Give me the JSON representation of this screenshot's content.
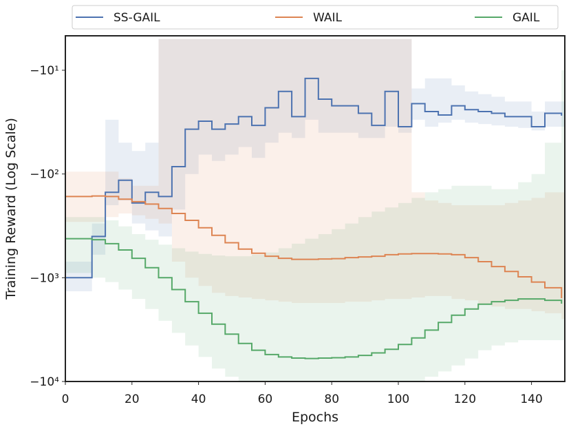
{
  "chart_data": {
    "type": "line",
    "title": "",
    "xlabel": "Epochs",
    "ylabel": "Training Reward (Log Scale)",
    "x_scale": "linear",
    "y_scale": "symlog-negative",
    "xlim": [
      0,
      150
    ],
    "ylim": [
      -10000,
      -5
    ],
    "x_ticks": [
      0,
      20,
      40,
      60,
      80,
      100,
      120,
      140
    ],
    "y_ticks": [
      {
        "value": -10,
        "label": "−10¹"
      },
      {
        "value": -100,
        "label": "−10²"
      },
      {
        "value": -1000,
        "label": "−10³"
      },
      {
        "value": -10000,
        "label": "−10⁴"
      }
    ],
    "grid": false,
    "legend_position": "top",
    "series": [
      {
        "name": "SS-GAIL",
        "color": "#4c72b0",
        "x": [
          0,
          8,
          12,
          16,
          20,
          24,
          28,
          32,
          36,
          40,
          44,
          48,
          52,
          56,
          60,
          64,
          68,
          72,
          76,
          80,
          84,
          88,
          92,
          96,
          100,
          104,
          108,
          112,
          116,
          120,
          124,
          128,
          132,
          136,
          140,
          144,
          149
        ],
        "values": [
          -1000,
          -400,
          -150,
          -115,
          -190,
          -150,
          -165,
          -85,
          -37,
          -31,
          -37,
          -33,
          -28,
          -34,
          -23,
          -16,
          -28,
          -12,
          -19,
          -22,
          -22,
          -26,
          -34,
          -16,
          -35,
          -21,
          -25,
          -27,
          -22,
          -24,
          -25,
          -26,
          -28,
          -28,
          -35,
          -26,
          -27
        ],
        "band_low": [
          -1350,
          -600,
          -200,
          -180,
          -300,
          -350,
          -400,
          -220,
          -100,
          -65,
          -75,
          -65,
          -55,
          -70,
          -50,
          -40,
          -45,
          -30,
          -40,
          -40,
          -40,
          -45,
          -45,
          -35,
          -40,
          -30,
          -35,
          -32,
          -30,
          -32,
          -33,
          -34,
          -35,
          -36,
          -38,
          -35,
          -35
        ],
        "band_high": [
          -700,
          -300,
          -30,
          -50,
          -60,
          -50,
          -5,
          -5,
          -5,
          -5,
          -5,
          -5,
          -5,
          -5,
          -5,
          -5,
          -5,
          -5,
          -5,
          -5,
          -5,
          -5,
          -5,
          -5,
          -5,
          -15,
          -12,
          -12,
          -14,
          -16,
          -17,
          -18,
          -20,
          -20,
          -25,
          -20,
          -20
        ]
      },
      {
        "name": "WAIL",
        "color": "#dd8452",
        "x": [
          0,
          8,
          12,
          16,
          20,
          24,
          28,
          32,
          36,
          40,
          44,
          48,
          52,
          56,
          60,
          64,
          68,
          72,
          76,
          80,
          84,
          88,
          92,
          96,
          100,
          104,
          108,
          112,
          116,
          120,
          124,
          128,
          132,
          136,
          140,
          144,
          149
        ],
        "values": [
          -165,
          -163,
          -165,
          -175,
          -185,
          -195,
          -215,
          -240,
          -280,
          -330,
          -390,
          -460,
          -530,
          -580,
          -620,
          -650,
          -665,
          -665,
          -660,
          -655,
          -640,
          -630,
          -620,
          -600,
          -590,
          -585,
          -585,
          -590,
          -600,
          -640,
          -700,
          -780,
          -870,
          -980,
          -1100,
          -1250,
          -1550
        ],
        "band_low": [
          -290,
          -290,
          -260,
          -240,
          -250,
          -270,
          -300,
          -700,
          -1000,
          -1200,
          -1400,
          -1500,
          -1550,
          -1600,
          -1650,
          -1700,
          -1750,
          -1750,
          -1750,
          -1750,
          -1700,
          -1700,
          -1650,
          -1600,
          -1600,
          -1550,
          -1500,
          -1500,
          -1600,
          -1650,
          -1800,
          -1900,
          -2000,
          -2000,
          -2100,
          -2200,
          -2500
        ],
        "band_high": [
          -95,
          -95,
          -95,
          -110,
          -130,
          -130,
          -5,
          -5,
          -5,
          -5,
          -5,
          -5,
          -5,
          -5,
          -5,
          -5,
          -5,
          -5,
          -5,
          -5,
          -5,
          -5,
          -5,
          -5,
          -5,
          -150,
          -180,
          -190,
          -200,
          -200,
          -200,
          -200,
          -190,
          -180,
          -170,
          -150,
          -150
        ]
      },
      {
        "name": "GAIL",
        "color": "#55a868",
        "x": [
          0,
          8,
          12,
          16,
          20,
          24,
          28,
          32,
          36,
          40,
          44,
          48,
          52,
          56,
          60,
          64,
          68,
          72,
          76,
          80,
          84,
          88,
          92,
          96,
          100,
          104,
          108,
          112,
          116,
          120,
          124,
          128,
          132,
          136,
          140,
          144,
          149
        ],
        "values": [
          -420,
          -430,
          -470,
          -540,
          -650,
          -800,
          -1000,
          -1300,
          -1700,
          -2200,
          -2800,
          -3500,
          -4300,
          -5000,
          -5500,
          -5800,
          -5950,
          -6000,
          -5950,
          -5900,
          -5800,
          -5600,
          -5300,
          -4900,
          -4400,
          -3800,
          -3200,
          -2700,
          -2300,
          -2000,
          -1800,
          -1700,
          -1650,
          -1600,
          -1600,
          -1650,
          -1750
        ],
        "band_low": [
          -900,
          -1000,
          -1100,
          -1300,
          -1600,
          -2000,
          -2600,
          -3400,
          -4500,
          -5800,
          -7500,
          -9000,
          -10000,
          -10000,
          -10000,
          -10000,
          -10000,
          -10000,
          -10000,
          -10000,
          -10000,
          -10000,
          -10000,
          -10000,
          -10000,
          -10000,
          -9000,
          -8000,
          -7000,
          -6000,
          -5000,
          -4500,
          -4200,
          -4000,
          -4000,
          -4000,
          -4000
        ],
        "band_high": [
          -260,
          -260,
          -280,
          -320,
          -380,
          -430,
          -480,
          -520,
          -560,
          -590,
          -610,
          -620,
          -620,
          -600,
          -570,
          -520,
          -470,
          -420,
          -380,
          -340,
          -300,
          -260,
          -230,
          -210,
          -190,
          -170,
          -150,
          -140,
          -130,
          -130,
          -130,
          -140,
          -140,
          -120,
          -100,
          -50,
          -10
        ]
      }
    ]
  }
}
